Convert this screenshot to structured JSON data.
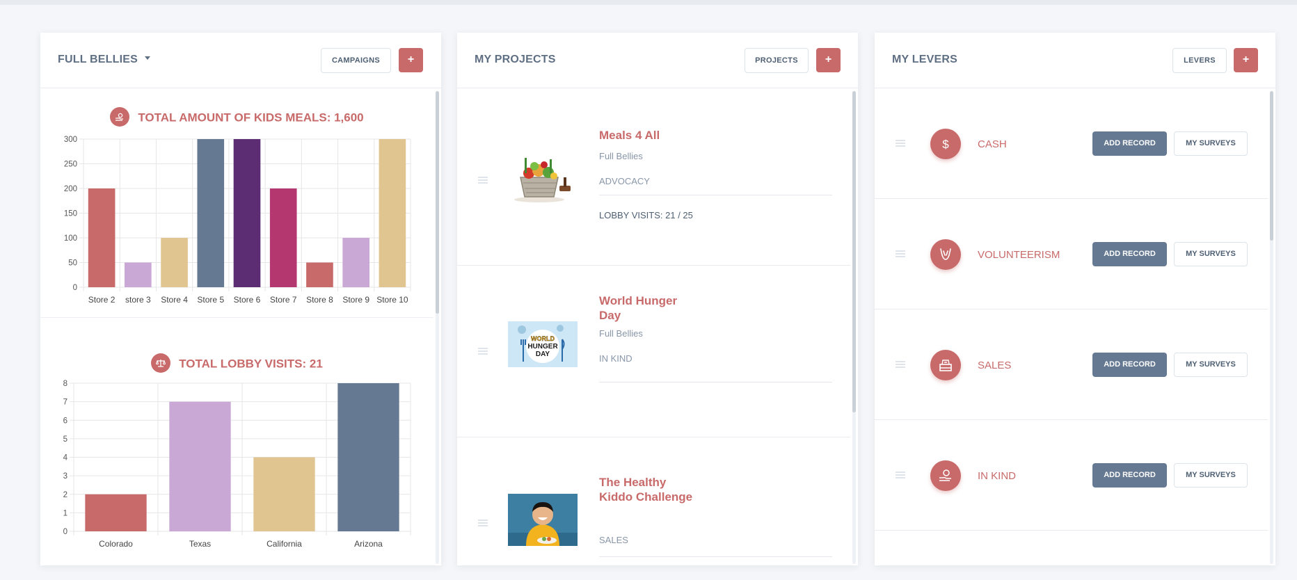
{
  "colors": {
    "accent": "#c86a6a",
    "slate": "#657a92",
    "text": "#5f6f83"
  },
  "panel1": {
    "title": "FULL BELLIES",
    "campaigns_label": "CAMPAIGNS",
    "add_label": "+"
  },
  "panel2": {
    "title": "MY PROJECTS",
    "projects_label": "PROJECTS",
    "add_label": "+",
    "projects": [
      {
        "name": "Meals 4 All",
        "org": "Full Bellies",
        "type": "ADVOCACY",
        "meta": "LOBBY VISITS: 21 / 25"
      },
      {
        "name": "World Hunger Day",
        "org": "Full Bellies",
        "type": "IN KIND",
        "image_text": [
          "WORLD",
          "HUNGER",
          "DAY"
        ]
      },
      {
        "name": "The Healthy Kiddo Challenge",
        "type": "SALES"
      }
    ]
  },
  "panel3": {
    "title": "MY LEVERS",
    "levers_label": "LEVERS",
    "add_label": "+",
    "levers": [
      {
        "name": "CASH",
        "icon": "dollar-icon",
        "add_label": "ADD RECORD",
        "surveys_label": "MY SURVEYS"
      },
      {
        "name": "VOLUNTEERISM",
        "icon": "helping-hands-icon",
        "add_label": "ADD RECORD",
        "surveys_label": "MY SURVEYS"
      },
      {
        "name": "SALES",
        "icon": "cash-register-icon",
        "add_label": "ADD RECORD",
        "surveys_label": "MY SURVEYS"
      },
      {
        "name": "IN KIND",
        "icon": "hand-giving-icon",
        "add_label": "ADD RECORD",
        "surveys_label": "MY SURVEYS"
      }
    ]
  },
  "chart_data": [
    {
      "type": "bar",
      "title": "TOTAL AMOUNT OF KIDS MEALS: 1,600",
      "icon": "hand-coin-icon",
      "categories": [
        "Store 2",
        "store 3",
        "Store 4",
        "Store 5",
        "Store 6",
        "Store 7",
        "Store 8",
        "Store 9",
        "Store 10"
      ],
      "values": [
        200,
        50,
        100,
        300,
        300,
        200,
        50,
        100,
        300
      ],
      "colors": [
        "#c86a6a",
        "#caa8d6",
        "#e0c591",
        "#657a92",
        "#5d2d73",
        "#b4386f",
        "#c86a6a",
        "#caa8d6",
        "#e0c591"
      ],
      "ylim": [
        0,
        300
      ],
      "yticks": [
        0,
        50,
        100,
        150,
        200,
        250,
        300
      ],
      "grid": true
    },
    {
      "type": "bar",
      "title": "TOTAL LOBBY VISITS: 21",
      "icon": "scales-icon",
      "categories": [
        "Colorado",
        "Texas",
        "California",
        "Arizona"
      ],
      "values": [
        2,
        7,
        4,
        8
      ],
      "colors": [
        "#c86a6a",
        "#caa8d6",
        "#e0c591",
        "#657a92"
      ],
      "ylim": [
        0,
        8
      ],
      "yticks": [
        0,
        1,
        2,
        3,
        4,
        5,
        6,
        7,
        8
      ],
      "grid": true
    }
  ]
}
